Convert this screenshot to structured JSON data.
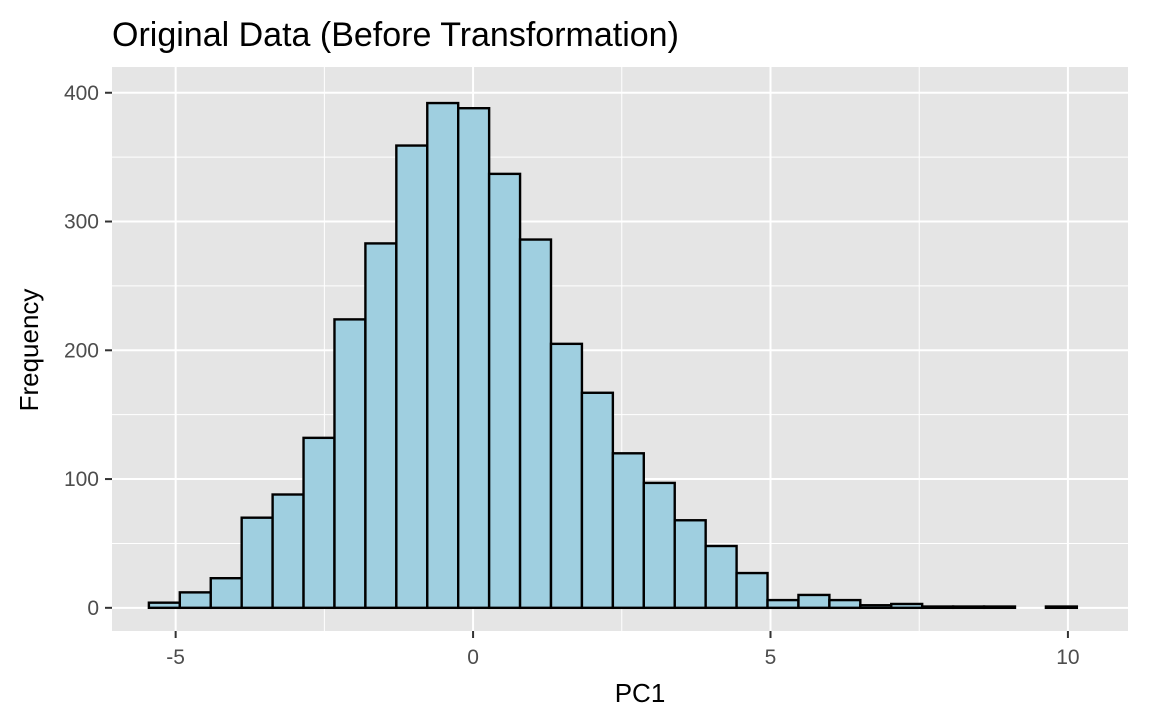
{
  "chart_data": {
    "type": "bar",
    "title": "Original Data (Before Transformation)",
    "xlabel": "PC1",
    "ylabel": "Frequency",
    "xlim": [
      -6.07,
      11.01
    ],
    "ylim": [
      -18,
      420
    ],
    "xticks": [
      -5,
      0,
      5,
      10
    ],
    "xtick_labels": [
      "-5",
      "0",
      "5",
      "10"
    ],
    "yticks": [
      0,
      100,
      200,
      300,
      400
    ],
    "ytick_labels": [
      "0",
      "100",
      "200",
      "300",
      "400"
    ],
    "bin_width": 0.52,
    "bin_starts": [
      -5.45,
      -4.93,
      -4.41,
      -3.89,
      -3.37,
      -2.85,
      -2.33,
      -1.81,
      -1.29,
      -0.77,
      -0.25,
      0.27,
      0.79,
      1.31,
      1.83,
      2.35,
      2.87,
      3.39,
      3.91,
      4.43,
      4.95,
      5.47,
      5.99,
      6.51,
      7.03,
      7.55,
      8.07,
      8.59,
      9.11,
      9.63
    ],
    "values": [
      4,
      12,
      23,
      70,
      88,
      132,
      224,
      283,
      359,
      392,
      388,
      337,
      286,
      205,
      167,
      120,
      97,
      68,
      48,
      27,
      6,
      10,
      6,
      2,
      3,
      1,
      1,
      1,
      0,
      1
    ],
    "colors": {
      "panel": "#e5e5e5",
      "grid_major": "#ffffff",
      "bar_fill": "#9fcfe0",
      "bar_stroke": "#000000",
      "tick": "#333333"
    },
    "grid": true,
    "legend": "none"
  }
}
